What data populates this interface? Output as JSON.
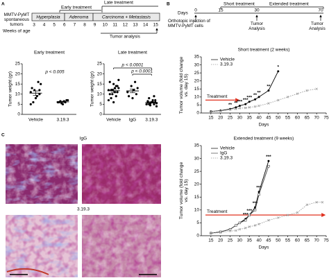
{
  "timeline_a": {
    "label": "A",
    "source": "MMTV-PyMT spontaneous tumors",
    "axis_label": "Weeks of age",
    "weeks": [
      3,
      4,
      5,
      6,
      7,
      8,
      9,
      10,
      11,
      12,
      13,
      14,
      15
    ],
    "stages": [
      "Hyperplasia",
      "Adenoma",
      "Carcinoma + Metastasis"
    ],
    "early": "Early treatment",
    "late": "Late treatment",
    "analysis": "Tumor analysis"
  },
  "timeline_b": {
    "label": "B",
    "axis_label": "Days",
    "days": [
      0,
      15,
      30,
      70
    ],
    "short": "Short treatment",
    "extended": "Extended treatment",
    "injection": "Orthotopic injection of MMTV-PyMT cells",
    "analysis": [
      "Tumor Analysis",
      "Tumor Analysis"
    ]
  },
  "panel_c": {
    "label": "C",
    "titles": [
      "IgG",
      "3.19.3"
    ]
  },
  "chart_data": [
    {
      "type": "dot",
      "title": "Early treatment",
      "y_label": "Tumor weight (gr)",
      "ylim": [
        0,
        25
      ],
      "yticks": [
        0,
        5,
        10,
        15,
        20,
        25
      ],
      "annotations": [
        "p < 0.005"
      ],
      "series": [
        {
          "name": "Vehicle",
          "color": "#000000",
          "values": [
            11,
            10,
            9,
            12,
            13,
            15,
            16,
            8,
            6,
            5,
            12
          ],
          "mean": 10.5,
          "sem": 1.1
        },
        {
          "name": "3.19.3",
          "color": "#000000",
          "values": [
            6,
            7,
            6.5,
            5.5,
            6,
            7,
            6,
            5,
            6.5
          ],
          "mean": 6.2,
          "sem": 0.3
        }
      ]
    },
    {
      "type": "dot",
      "title": "Late treatment",
      "y_label": "Tumor weight (gr)",
      "ylim": [
        0,
        25
      ],
      "yticks": [
        0,
        5,
        10,
        15,
        20,
        25
      ],
      "annotations": [
        "p < 0.0001",
        "p < 0.0001"
      ],
      "series": [
        {
          "name": "Vehicle",
          "color": "#000000",
          "values": [
            12,
            14,
            11,
            10,
            16,
            13,
            9,
            15,
            8,
            7,
            11,
            13,
            12,
            10,
            17,
            14,
            6,
            12
          ],
          "mean": 11.7,
          "sem": 0.8
        },
        {
          "name": "IgG",
          "color": "#000000",
          "values": [
            11,
            10,
            12,
            14,
            9,
            13,
            16,
            8
          ],
          "mean": 11.6,
          "sem": 0.9
        },
        {
          "name": "3.19.3",
          "color": "#000000",
          "values": [
            5,
            6,
            7,
            5.5,
            6.5,
            4,
            5,
            6,
            8,
            5,
            7,
            6,
            4.5,
            6,
            5.5,
            9,
            6,
            5
          ],
          "mean": 5.9,
          "sem": 0.3
        }
      ]
    },
    {
      "type": "line",
      "title": "Short treatment (2 weeks)",
      "x_label": "Days",
      "y_label": "Tumor volume (fold change vs. day 15)",
      "annotation": "Treatment",
      "xlim": [
        10,
        75
      ],
      "xticks": [
        15,
        20,
        25,
        30,
        35,
        40,
        45,
        50,
        55,
        60,
        65,
        70,
        75
      ],
      "ylim": [
        0,
        35
      ],
      "yticks": [
        0,
        5,
        10,
        15,
        20,
        25,
        30,
        35
      ],
      "legend": "upper-left",
      "series": [
        {
          "name": "Vehicle",
          "color": "#000000",
          "line_style": "solid",
          "marker": "circle",
          "x": [
            15,
            20,
            25,
            28,
            30,
            33,
            35,
            38,
            40,
            45,
            50
          ],
          "values": [
            1,
            1.5,
            2.5,
            3.5,
            4.5,
            5.5,
            7,
            8.5,
            10,
            14,
            26
          ],
          "significance": [
            null,
            null,
            "**",
            "**",
            "***",
            "***",
            "***",
            "**",
            "**",
            "**",
            "*"
          ]
        },
        {
          "name": "3.19.3",
          "color": "#999999",
          "line_style": "dotted",
          "marker": "cross",
          "x": [
            15,
            20,
            25,
            28,
            30,
            33,
            35,
            38,
            40,
            45,
            50,
            55,
            60,
            65,
            70
          ],
          "values": [
            1,
            1.2,
            2,
            2.5,
            3,
            3.2,
            3.5,
            4,
            4.5,
            6,
            8,
            10,
            12,
            14,
            15
          ]
        }
      ]
    },
    {
      "type": "line",
      "title": "Extended treatment (9 weeks)",
      "x_label": "Days",
      "y_label": "Tumor volume (fold change vs. day 15)",
      "annotation": "Treatment",
      "xlim": [
        10,
        75
      ],
      "xticks": [
        15,
        20,
        25,
        30,
        35,
        40,
        45,
        50,
        55,
        60,
        65,
        70,
        75
      ],
      "ylim": [
        0,
        35
      ],
      "yticks": [
        0,
        5,
        10,
        15,
        20,
        25,
        30,
        35
      ],
      "legend": "upper-left",
      "series": [
        {
          "name": "Vehicle",
          "color": "#000000",
          "line_style": "solid",
          "marker": "circle",
          "x": [
            15,
            20,
            25,
            28,
            30,
            33,
            35,
            38,
            40,
            45
          ],
          "values": [
            1,
            1.5,
            2.5,
            4,
            5,
            6.5,
            8,
            11,
            17,
            29
          ],
          "significance": [
            null,
            null,
            null,
            null,
            null,
            "***",
            "***",
            "***",
            "***",
            "***"
          ]
        },
        {
          "name": "IgG",
          "color": "#444444",
          "line_style": "solid",
          "marker": "square",
          "x": [
            15,
            20,
            25,
            28,
            30,
            33,
            35,
            38,
            40,
            45
          ],
          "values": [
            1,
            1.5,
            2.5,
            4,
            5,
            6,
            8,
            10,
            16,
            27
          ]
        },
        {
          "name": "3.19.3",
          "color": "#999999",
          "line_style": "dotted",
          "marker": "cross",
          "x": [
            15,
            20,
            25,
            28,
            30,
            33,
            35,
            38,
            40,
            45,
            50,
            55,
            60,
            65,
            70,
            73
          ],
          "values": [
            1,
            1.2,
            1.8,
            2,
            2.5,
            3,
            3.5,
            4,
            4.5,
            6,
            7,
            8,
            9,
            12,
            13,
            13
          ]
        }
      ]
    }
  ]
}
